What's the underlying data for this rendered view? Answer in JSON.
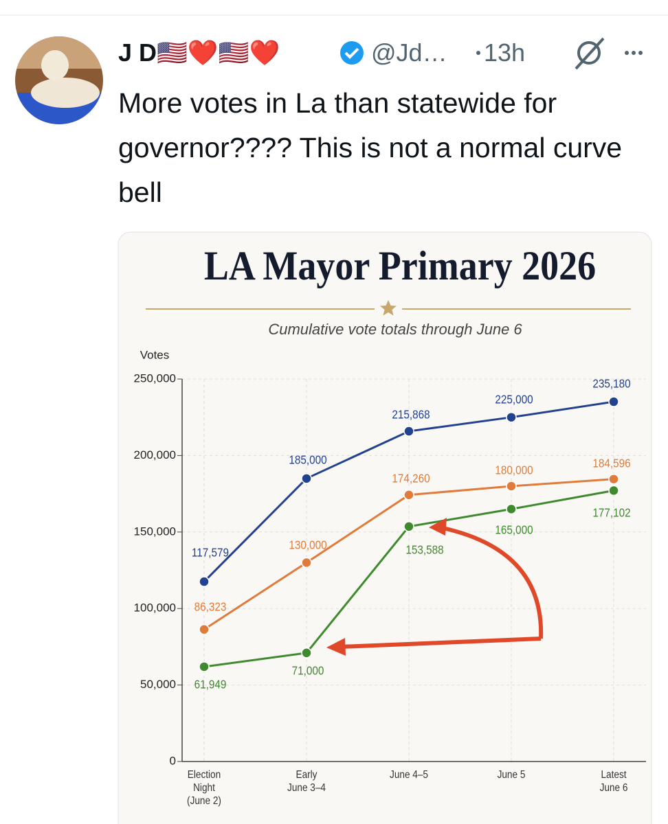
{
  "tweet": {
    "author_name": "J D🇺🇸❤️🇺🇸❤️",
    "handle": "@Jd…",
    "time": "13h",
    "text": "More votes in La than statewide for governor???? This is not a normal curve bell"
  },
  "chart_data": {
    "type": "line",
    "title": "LA Mayor Primary 2026",
    "subtitle": "Cumulative vote totals through June 6",
    "y_label": "Votes",
    "categories": [
      "Election\nNight\n(June 2)",
      "Early\nJune 3–4",
      "June 4–5",
      "June 5",
      "Latest\nJune 6"
    ],
    "series": [
      {
        "color": "#22418f",
        "values": [
          117579,
          185000,
          215868,
          225000,
          235180
        ],
        "value_labels": [
          "117,579",
          "185,000",
          "215,868",
          "225,000",
          "235,180"
        ]
      },
      {
        "color": "#e07b39",
        "values": [
          86323,
          130000,
          174260,
          180000,
          184596
        ],
        "value_labels": [
          "86,323",
          "130,000",
          "174,260",
          "180,000",
          "184,596"
        ]
      },
      {
        "color": "#3f8a2e",
        "values": [
          61949,
          71000,
          153588,
          165000,
          177102
        ],
        "value_labels": [
          "61,949",
          "71,000",
          "153,588",
          "165,000",
          "177,102"
        ]
      }
    ],
    "ylim": [
      0,
      250000
    ],
    "yticks": [
      0,
      {
        "value": 50000,
        "label": "50,000"
      },
      {
        "value": 100000,
        "label": "100,000"
      },
      {
        "value": 150000,
        "label": "150,000"
      },
      {
        "value": 200000,
        "label": "200,000"
      },
      {
        "value": 250000,
        "label": "250,000"
      }
    ],
    "grid": true
  }
}
